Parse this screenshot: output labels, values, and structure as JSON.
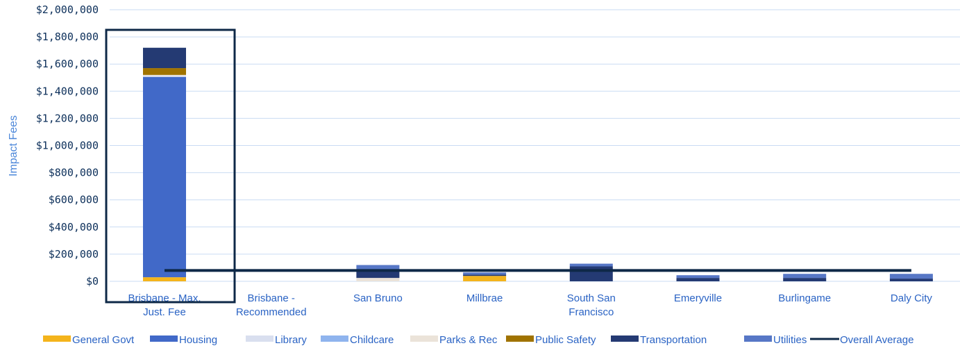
{
  "chart_data": {
    "type": "bar",
    "stacked": true,
    "title": "",
    "xlabel": "",
    "ylabel": "Impact Fees",
    "ylim": [
      0,
      2000000
    ],
    "y_ticks": [
      "$0",
      "$200,000",
      "$400,000",
      "$600,000",
      "$800,000",
      "$1,000,000",
      "$1,200,000",
      "$1,400,000",
      "$1,600,000",
      "$1,800,000",
      "$2,000,000"
    ],
    "categories": [
      [
        "Brisbane - Max.",
        "Just. Fee"
      ],
      [
        "Brisbane -",
        "Recommended"
      ],
      [
        "San Bruno"
      ],
      [
        "Millbrae"
      ],
      [
        "South San",
        "Francisco"
      ],
      [
        "Emeryville"
      ],
      [
        "Burlingame"
      ],
      [
        "Daly City"
      ]
    ],
    "series": [
      {
        "name": "General Govt",
        "color": "#f4b41c",
        "values": [
          30000,
          0,
          0,
          40000,
          0,
          0,
          0,
          0
        ]
      },
      {
        "name": "Housing",
        "color": "#4169c8",
        "values": [
          1475000,
          0,
          0,
          0,
          0,
          0,
          0,
          0
        ]
      },
      {
        "name": "Library",
        "color": "#d9dfef",
        "values": [
          10000,
          0,
          0,
          0,
          0,
          0,
          0,
          0
        ]
      },
      {
        "name": "Childcare",
        "color": "#8fb4ee",
        "values": 0
      },
      {
        "name": "Parks & Rec",
        "color": "#ebe3d9",
        "values": [
          5000,
          0,
          25000,
          0,
          0,
          0,
          0,
          0
        ]
      },
      {
        "name": "Public Safety",
        "color": "#a07300",
        "values": [
          50000,
          0,
          0,
          0,
          0,
          0,
          0,
          0
        ]
      },
      {
        "name": "Transportation",
        "color": "#243a73",
        "values": [
          150000,
          0,
          50000,
          10000,
          110000,
          25000,
          25000,
          20000
        ]
      },
      {
        "name": "Utilities",
        "color": "#5777c6",
        "values": [
          0,
          0,
          45000,
          15000,
          20000,
          20000,
          30000,
          35000
        ]
      }
    ],
    "overall_average": {
      "name": "Overall Average",
      "color": "#0e2847",
      "value": 80000
    },
    "highlight_category": 0,
    "grid": true,
    "legend_position": "bottom"
  }
}
